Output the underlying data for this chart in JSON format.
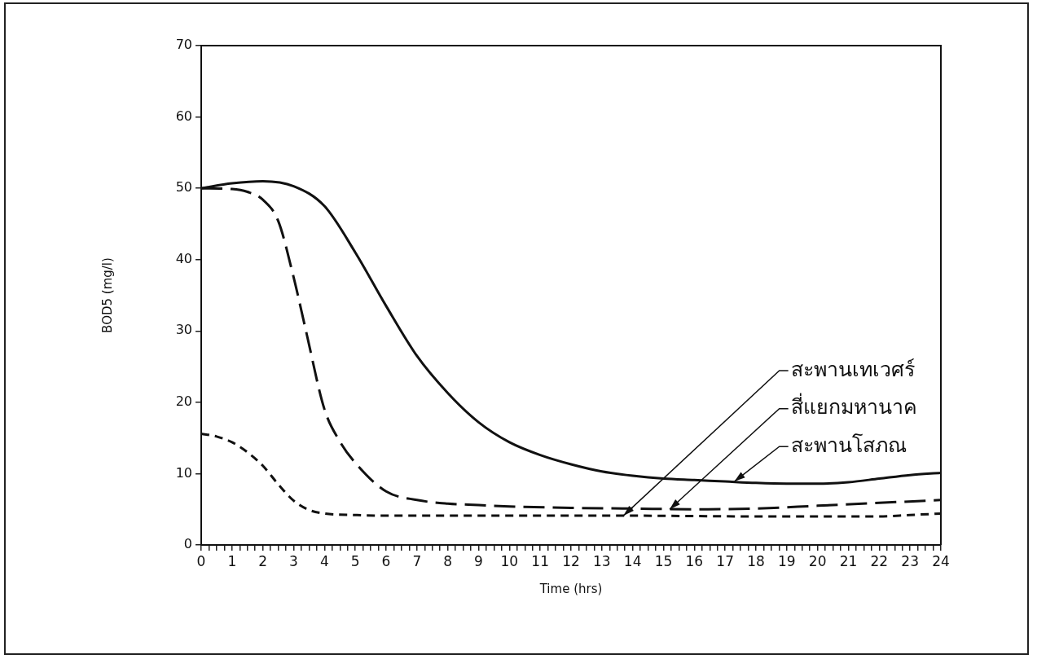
{
  "chart_data": {
    "type": "line",
    "xlabel": "Time (hrs)",
    "ylabel": "BOD5 (mg/l)",
    "xlim": [
      0,
      24
    ],
    "xticks": [
      0,
      {
        "value": 0.25,
        "label": null
      },
      {
        "value": 0.5,
        "label": null
      },
      {
        "value": 0.75,
        "label": null
      },
      1,
      {
        "value": 1.25,
        "label": null
      },
      {
        "value": 1.5,
        "label": null
      },
      {
        "value": 1.75,
        "label": null
      },
      2,
      {
        "value": 2.25,
        "label": null
      },
      {
        "value": 2.5,
        "label": null
      },
      {
        "value": 2.75,
        "label": null
      },
      3,
      {
        "value": 3.25,
        "label": null
      },
      {
        "value": 3.5,
        "label": null
      },
      {
        "value": 3.75,
        "label": null
      },
      4,
      {
        "value": 4.25,
        "label": null
      },
      {
        "value": 4.5,
        "label": null
      },
      {
        "value": 4.75,
        "label": null
      },
      5,
      {
        "value": 5.25,
        "label": null
      },
      {
        "value": 5.5,
        "label": null
      },
      {
        "value": 5.75,
        "label": null
      },
      6,
      {
        "value": 6.25,
        "label": null
      },
      {
        "value": 6.5,
        "label": null
      },
      {
        "value": 6.75,
        "label": null
      },
      7,
      {
        "value": 7.25,
        "label": null
      },
      {
        "value": 7.5,
        "label": null
      },
      {
        "value": 7.75,
        "label": null
      },
      8,
      {
        "value": 8.25,
        "label": null
      },
      {
        "value": 8.5,
        "label": null
      },
      {
        "value": 8.75,
        "label": null
      },
      9,
      {
        "value": 9.25,
        "label": null
      },
      {
        "value": 9.5,
        "label": null
      },
      {
        "value": 9.75,
        "label": null
      },
      10,
      {
        "value": 10.25,
        "label": null
      },
      {
        "value": 10.5,
        "label": null
      },
      {
        "value": 10.75,
        "label": null
      },
      11,
      {
        "value": 11.25,
        "label": null
      },
      {
        "value": 11.5,
        "label": null
      },
      {
        "value": 11.75,
        "label": null
      },
      12,
      {
        "value": 12.25,
        "label": null
      },
      {
        "value": 12.5,
        "label": null
      },
      {
        "value": 12.75,
        "label": null
      },
      13,
      {
        "value": 13.25,
        "label": null
      },
      {
        "value": 13.5,
        "label": null
      },
      {
        "value": 13.75,
        "label": null
      },
      14,
      {
        "value": 14.25,
        "label": null
      },
      {
        "value": 14.5,
        "label": null
      },
      {
        "value": 14.75,
        "label": null
      },
      15,
      {
        "value": 15.25,
        "label": null
      },
      {
        "value": 15.5,
        "label": null
      },
      {
        "value": 15.75,
        "label": null
      },
      16,
      {
        "value": 16.25,
        "label": null
      },
      {
        "value": 16.5,
        "label": null
      },
      {
        "value": 16.75,
        "label": null
      },
      17,
      {
        "value": 17.25,
        "label": null
      },
      {
        "value": 17.5,
        "label": null
      },
      {
        "value": 17.75,
        "label": null
      },
      18,
      {
        "value": 18.25,
        "label": null
      },
      {
        "value": 18.5,
        "label": null
      },
      {
        "value": 18.75,
        "label": null
      },
      19,
      {
        "value": 19.25,
        "label": null
      },
      {
        "value": 19.5,
        "label": null
      },
      {
        "value": 19.75,
        "label": null
      },
      20,
      {
        "value": 20.25,
        "label": null
      },
      {
        "value": 20.5,
        "label": null
      },
      {
        "value": 20.75,
        "label": null
      },
      21,
      {
        "value": 21.25,
        "label": null
      },
      {
        "value": 21.5,
        "label": null
      },
      {
        "value": 21.75,
        "label": null
      },
      22,
      {
        "value": 22.25,
        "label": null
      },
      {
        "value": 22.5,
        "label": null
      },
      {
        "value": 22.75,
        "label": null
      },
      23,
      {
        "value": 23.25,
        "label": null
      },
      {
        "value": 23.5,
        "label": null
      },
      {
        "value": 23.75,
        "label": null
      },
      24
    ],
    "ylim": [
      0,
      70
    ],
    "yticks": [
      0,
      10,
      20,
      30,
      40,
      50,
      60,
      70
    ],
    "grid": false,
    "legend": false,
    "marker": "none",
    "series": [
      {
        "color": "#111111",
        "line_style": "solid",
        "x": [
          0,
          1,
          2,
          3,
          4,
          5,
          6,
          7,
          8,
          9,
          10,
          11,
          12,
          13,
          14,
          15,
          16,
          17,
          18,
          19,
          20,
          21,
          22,
          23,
          24
        ],
        "values": [
          50,
          50.7,
          51,
          50.3,
          47.5,
          41,
          33.5,
          26.5,
          21.3,
          17.2,
          14.4,
          12.6,
          11.3,
          10.3,
          9.7,
          9.3,
          9.1,
          8.9,
          8.7,
          8.6,
          8.6,
          8.8,
          9.3,
          9.8,
          10.1
        ]
      },
      {
        "color": "#111111",
        "line_style": "dashed",
        "x": [
          0,
          1,
          1.5,
          2,
          2.5,
          3,
          3.4,
          4,
          4.5,
          5,
          6,
          7,
          8,
          9,
          10,
          12,
          14,
          16,
          18,
          20,
          22,
          24
        ],
        "values": [
          50,
          49.9,
          49.5,
          48.4,
          45.4,
          37.5,
          30,
          19,
          14.5,
          11.5,
          7.5,
          6.3,
          5.8,
          5.6,
          5.4,
          5.2,
          5.1,
          5.0,
          5.1,
          5.5,
          5.9,
          6.3
        ]
      },
      {
        "color": "#111111",
        "line_style": "dashed",
        "x": [
          0,
          0.5,
          1,
          1.5,
          2,
          2.5,
          3,
          3.5,
          4,
          5,
          6,
          8,
          10,
          14,
          18,
          20,
          22,
          23,
          24
        ],
        "values": [
          15.6,
          15.2,
          14.4,
          13,
          11.1,
          8.5,
          6.2,
          4.9,
          4.4,
          4.2,
          4.1,
          4.1,
          4.1,
          4.1,
          4.0,
          4.0,
          4.0,
          4.2,
          4.4
        ]
      }
    ],
    "annotations": [
      {
        "text": "สะพานเทเวศร์",
        "x": 13.7,
        "y": 4.1
      },
      {
        "text": "สี่แยกมหานาค",
        "x": 15.2,
        "y": 5.0
      },
      {
        "text": "สะพานโสภณ",
        "x": 17.3,
        "y": 8.9
      }
    ]
  }
}
